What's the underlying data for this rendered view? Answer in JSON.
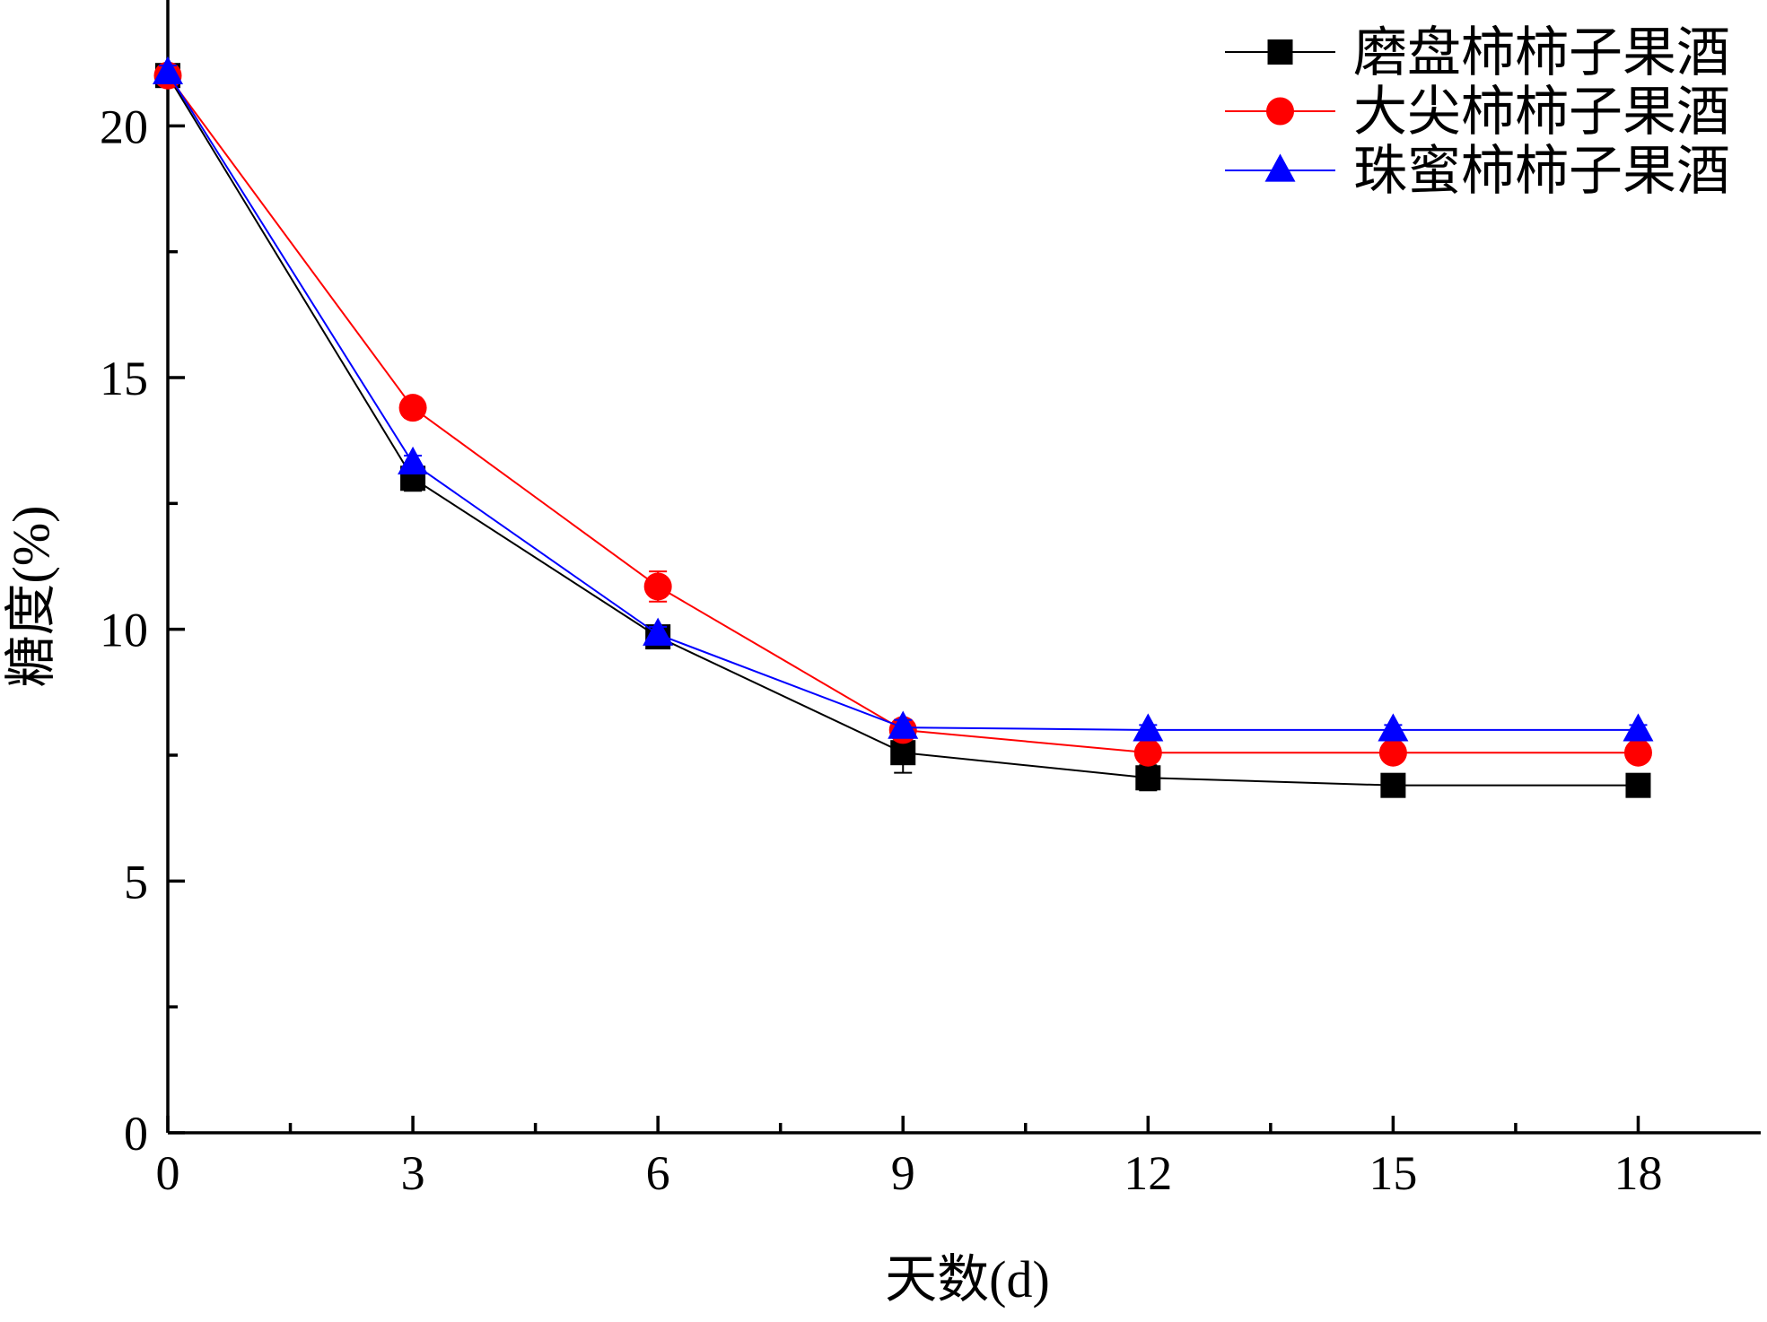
{
  "chart_data": {
    "type": "line",
    "xlabel": "天数(d)",
    "ylabel": "糖度(%)",
    "xlim": [
      0,
      19.5
    ],
    "ylim": [
      0,
      22.5
    ],
    "x_ticks": [
      0,
      3,
      6,
      9,
      12,
      15,
      18
    ],
    "x_tick_labels": [
      "0",
      "3",
      "6",
      "9",
      "12",
      "15",
      "18"
    ],
    "x_minor_ticks": [
      1.5,
      4.5,
      7.5,
      10.5,
      13.5,
      16.5
    ],
    "y_ticks": [
      0,
      5,
      10,
      15,
      20
    ],
    "y_tick_labels": [
      "0",
      "5",
      "10",
      "15",
      "20"
    ],
    "y_minor_ticks": [
      2.5,
      7.5,
      12.5,
      17.5
    ],
    "grid": false,
    "legend_position": "top-right",
    "x": [
      0,
      3,
      6,
      9,
      12,
      15,
      18
    ],
    "series": [
      {
        "name": "磨盘柿柿子果酒",
        "color": "#000000",
        "marker": "square",
        "values": [
          21.0,
          13.0,
          9.85,
          7.55,
          7.05,
          6.9,
          6.9
        ],
        "errors": [
          0.15,
          0.25,
          0.15,
          0.4,
          0.25,
          0.1,
          0.1
        ]
      },
      {
        "name": "大尖柿柿子果酒",
        "color": "#ff0000",
        "marker": "circle",
        "values": [
          21.0,
          14.4,
          10.85,
          8.0,
          7.55,
          7.55,
          7.55
        ],
        "errors": [
          0.15,
          0.2,
          0.3,
          0.2,
          0.1,
          0.1,
          0.1
        ]
      },
      {
        "name": "珠蜜柿柿子果酒",
        "color": "#0000ff",
        "marker": "triangle",
        "values": [
          21.05,
          13.3,
          9.9,
          8.05,
          8.0,
          8.0,
          8.0
        ],
        "errors": [
          0.15,
          0.15,
          0.15,
          0.15,
          0.1,
          0.1,
          0.1
        ]
      }
    ]
  }
}
